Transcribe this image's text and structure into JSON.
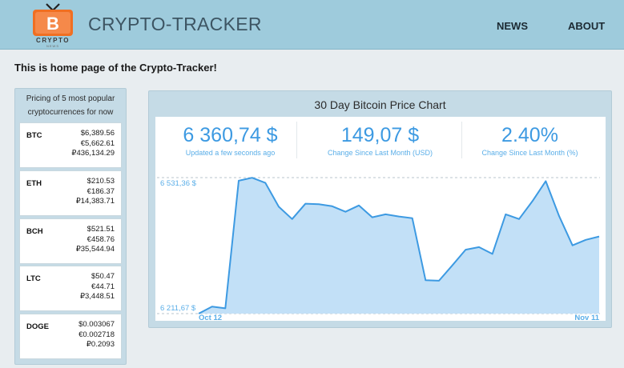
{
  "header": {
    "logo_letter": "B",
    "logo_text": "CRYPTO",
    "logo_subtext": "NEWS",
    "title": "CRYPTO-TRACKER",
    "nav": [
      {
        "label": "NEWS"
      },
      {
        "label": "ABOUT"
      }
    ]
  },
  "intro": "This is home page of the Crypto-Tracker!",
  "sidebar": {
    "heading_line1": "Pricing of 5 most popular",
    "heading_line2": "cryptocurrences for now",
    "coins": [
      {
        "symbol": "BTC",
        "usd": "$6,389.56",
        "eur": "€5,662.61",
        "rub": "₽436,134.29"
      },
      {
        "symbol": "ETH",
        "usd": "$210.53",
        "eur": "€186.37",
        "rub": "₽14,383.71"
      },
      {
        "symbol": "BCH",
        "usd": "$521.51",
        "eur": "€458.76",
        "rub": "₽35,544.94"
      },
      {
        "symbol": "LTC",
        "usd": "$50.47",
        "eur": "€44.71",
        "rub": "₽3,448.51"
      },
      {
        "symbol": "DOGE",
        "usd": "$0.003067",
        "eur": "€0.002718",
        "rub": "₽0.2093"
      }
    ]
  },
  "chart_panel": {
    "title": "30 Day Bitcoin Price Chart",
    "stats": [
      {
        "value": "6 360,74 $",
        "label": "Updated a few seconds ago"
      },
      {
        "value": "149,07 $",
        "label": "Change Since Last Month (USD)"
      },
      {
        "value": "2.40%",
        "label": "Change Since Last Month (%)"
      }
    ]
  },
  "colors": {
    "header_bg": "#9ecbdc",
    "accent_blue": "#3d9ae2",
    "area_fill": "#c2e0f7",
    "logo_orange": "#f06f22"
  },
  "chart_data": {
    "type": "area",
    "title": "30 Day Bitcoin Price Chart",
    "max_label": "6 531,36 $",
    "min_label": "6 211,67 $",
    "x_start_label": "Oct 12",
    "x_end_label": "Nov 11",
    "ylim": [
      6211.67,
      6531.36
    ],
    "series": [
      {
        "values": [
          6211.7,
          6228,
          6224,
          6524,
          6531,
          6519,
          6463,
          6434,
          6470,
          6469,
          6464,
          6451,
          6466,
          6438,
          6445,
          6440,
          6436,
          6290,
          6289,
          6325,
          6362,
          6368,
          6352,
          6445,
          6434,
          6476,
          6523,
          6441,
          6372,
          6385,
          6393
        ]
      }
    ]
  }
}
